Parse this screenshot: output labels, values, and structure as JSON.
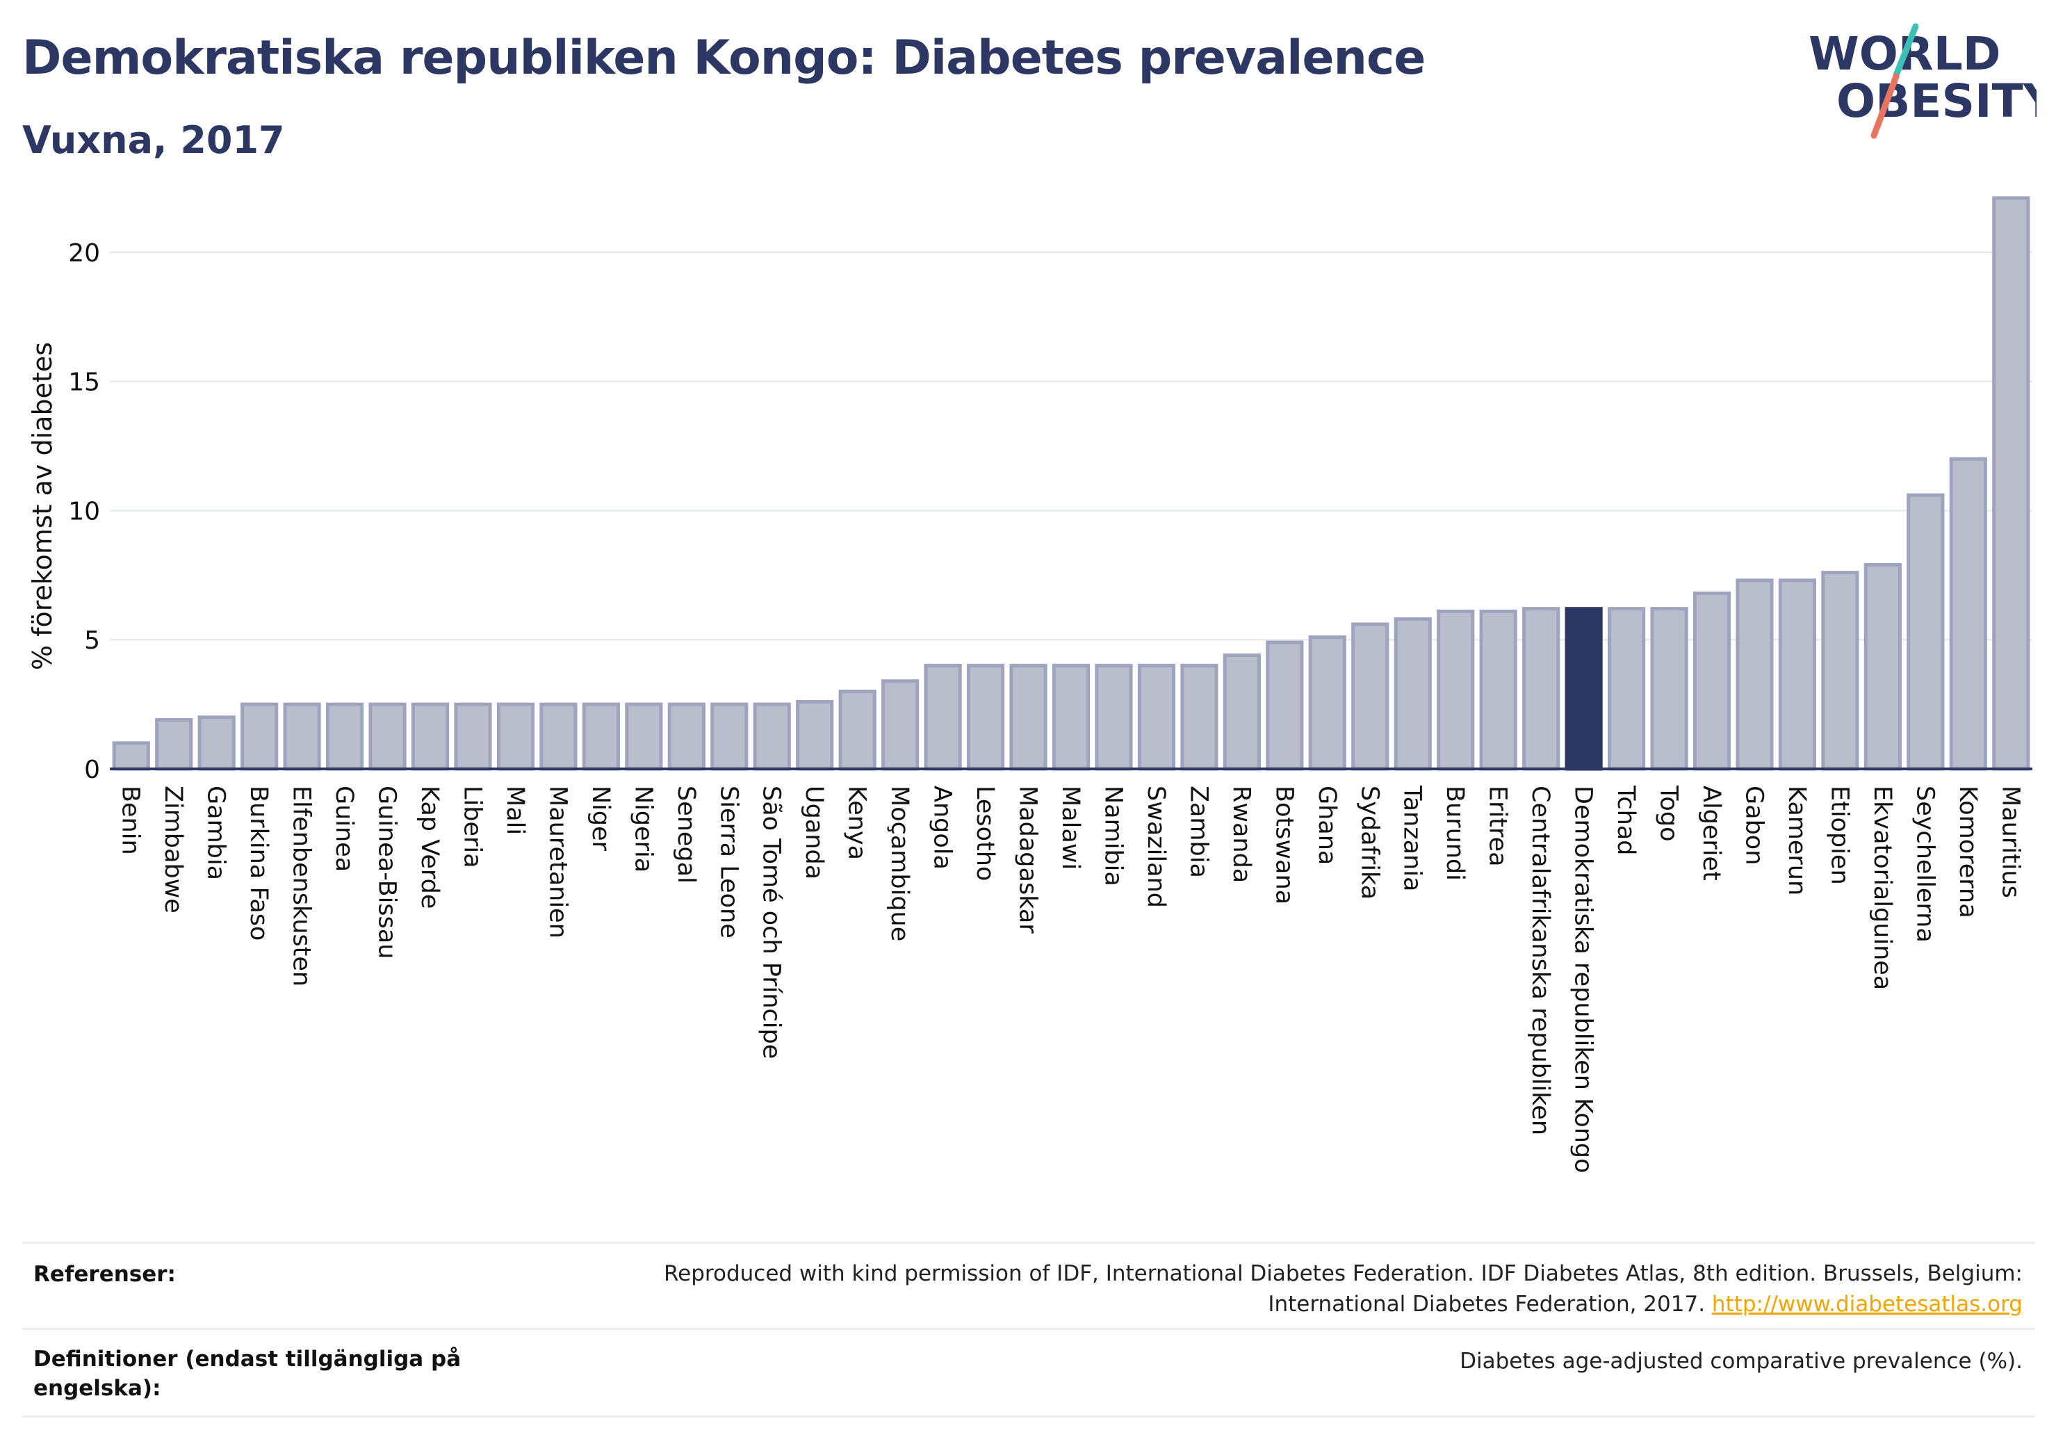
{
  "header": {
    "title": "Demokratiska republiken Kongo: Diabetes prevalence",
    "subtitle": "Vuxna, 2017"
  },
  "logo": {
    "line1": "WORLD",
    "line2": "OBESITY"
  },
  "colors": {
    "bar_default": "#b9bdcc",
    "bar_border": "#9ea4bd",
    "bar_highlight": "#2d3764",
    "text": "#2d3764",
    "link": "#f0a500",
    "logo_teal": "#3bbfb6",
    "logo_coral": "#e8735e"
  },
  "chart_data": {
    "type": "bar",
    "ylabel": "% förekomst av diabetes",
    "ylim": [
      0,
      22.5
    ],
    "yticks": [
      0,
      5,
      10,
      15,
      20
    ],
    "grid": true,
    "highlight": "Demokratiska republiken Kongo",
    "categories": [
      "Benin",
      "Zimbabwe",
      "Gambia",
      "Burkina Faso",
      "Elfenbenskusten",
      "Guinea",
      "Guinea-Bissau",
      "Kap Verde",
      "Liberia",
      "Mali",
      "Mauretanien",
      "Niger",
      "Nigeria",
      "Senegal",
      "Sierra Leone",
      "São Tomé och Príncipe",
      "Uganda",
      "Kenya",
      "Moçambique",
      "Angola",
      "Lesotho",
      "Madagaskar",
      "Malawi",
      "Namibia",
      "Swaziland",
      "Zambia",
      "Rwanda",
      "Botswana",
      "Ghana",
      "Sydafrika",
      "Tanzania",
      "Burundi",
      "Eritrea",
      "Centralafrikanska republiken",
      "Demokratiska republiken Kongo",
      "Tchad",
      "Togo",
      "Algeriet",
      "Gabon",
      "Kamerun",
      "Etiopien",
      "Ekvatorialguinea",
      "Seychellerna",
      "Komorerna",
      "Mauritius"
    ],
    "values": [
      1.0,
      1.9,
      2.0,
      2.5,
      2.5,
      2.5,
      2.5,
      2.5,
      2.5,
      2.5,
      2.5,
      2.5,
      2.5,
      2.5,
      2.5,
      2.5,
      2.6,
      3.0,
      3.4,
      4.0,
      4.0,
      4.0,
      4.0,
      4.0,
      4.0,
      4.0,
      4.4,
      4.9,
      5.1,
      5.6,
      5.8,
      6.1,
      6.1,
      6.2,
      6.2,
      6.2,
      6.2,
      6.8,
      7.3,
      7.3,
      7.6,
      7.9,
      10.6,
      12.0,
      22.1
    ]
  },
  "footer": {
    "references_label": "Referenser:",
    "references_text_line1": "Reproduced with kind permission of IDF, International Diabetes Federation. IDF Diabetes Atlas, 8th edition. Brussels, Belgium:",
    "references_text_line2": "International Diabetes Federation, 2017.",
    "references_link": "http://www.diabetesatlas.org",
    "definitions_label_line1": "Definitioner (endast tillgängliga på",
    "definitions_label_line2": "engelska):",
    "definitions_text": "Diabetes age-adjusted comparative prevalence (%)."
  }
}
